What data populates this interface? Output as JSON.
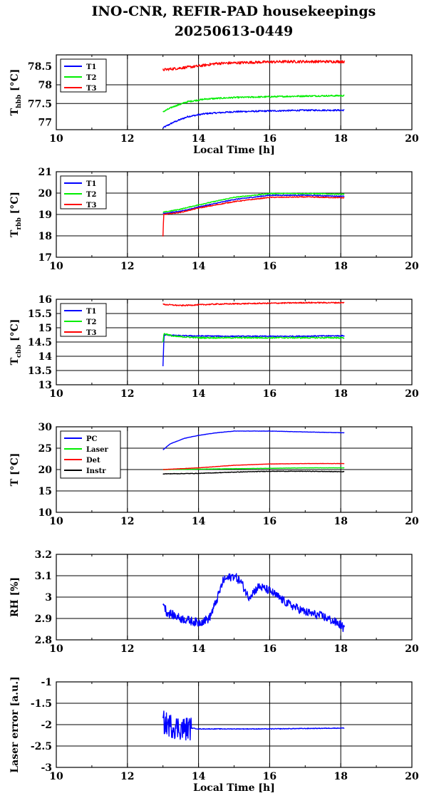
{
  "figure": {
    "title_line1": "INO-CNR, REFIR-PAD housekeepings",
    "title_line2": "20250613-0449"
  },
  "chart_data": [
    {
      "type": "line",
      "ylabel_main": "T",
      "ylabel_sub": "hbb",
      "ylabel_unit": "[°C]",
      "xlabel": "Local Time [h]",
      "xlim": [
        10,
        20
      ],
      "ylim": [
        76.8,
        78.8
      ],
      "xticks": [
        "10",
        "12",
        "14",
        "16",
        "18",
        "20"
      ],
      "yticks": [
        {
          "v": 77,
          "label": "77"
        },
        {
          "v": 77.5,
          "label": "77.5"
        },
        {
          "v": 78,
          "label": "78"
        },
        {
          "v": 78.5,
          "label": "78.5"
        }
      ],
      "grid": true,
      "legend": "top-left",
      "x_range": [
        13.0,
        18.1
      ],
      "series": [
        {
          "name": "T1",
          "color": "#0000ff",
          "trend": [
            [
              13.0,
              76.85
            ],
            [
              13.3,
              77.0
            ],
            [
              13.7,
              77.15
            ],
            [
              14.2,
              77.23
            ],
            [
              15.0,
              77.28
            ],
            [
              16.0,
              77.3
            ],
            [
              17.0,
              77.32
            ],
            [
              18.1,
              77.32
            ]
          ],
          "noise": 0.02
        },
        {
          "name": "T2",
          "color": "#00ee00",
          "trend": [
            [
              13.0,
              77.28
            ],
            [
              13.3,
              77.42
            ],
            [
              13.7,
              77.55
            ],
            [
              14.2,
              77.62
            ],
            [
              15.0,
              77.66
            ],
            [
              16.0,
              77.68
            ],
            [
              17.0,
              77.7
            ],
            [
              18.1,
              77.71
            ]
          ],
          "noise": 0.02
        },
        {
          "name": "T3",
          "color": "#ff0000",
          "trend": [
            [
              13.0,
              78.4
            ],
            [
              13.5,
              78.45
            ],
            [
              14.0,
              78.5
            ],
            [
              14.5,
              78.57
            ],
            [
              15.5,
              78.6
            ],
            [
              16.5,
              78.62
            ],
            [
              17.5,
              78.62
            ],
            [
              18.1,
              78.62
            ]
          ],
          "noise": 0.035
        }
      ]
    },
    {
      "type": "line",
      "ylabel_main": "T",
      "ylabel_sub": "rbb",
      "ylabel_unit": "[°C]",
      "xlabel": "",
      "xlim": [
        10,
        20
      ],
      "ylim": [
        17,
        21
      ],
      "xticks": [
        "10",
        "12",
        "14",
        "16",
        "18",
        "20"
      ],
      "yticks": [
        {
          "v": 17,
          "label": "17"
        },
        {
          "v": 18,
          "label": "18"
        },
        {
          "v": 19,
          "label": "19"
        },
        {
          "v": 20,
          "label": "20"
        },
        {
          "v": 21,
          "label": "21"
        }
      ],
      "grid": true,
      "legend": "top-left",
      "x_range": [
        13.0,
        18.1
      ],
      "series": [
        {
          "name": "T1",
          "color": "#0000ff",
          "trend": [
            [
              13.0,
              19.05
            ],
            [
              13.5,
              19.15
            ],
            [
              14.0,
              19.35
            ],
            [
              15.0,
              19.7
            ],
            [
              16.0,
              19.9
            ],
            [
              17.0,
              19.9
            ],
            [
              18.1,
              19.85
            ]
          ],
          "noise": 0.02
        },
        {
          "name": "T2",
          "color": "#00ee00",
          "trend": [
            [
              13.0,
              19.1
            ],
            [
              13.5,
              19.25
            ],
            [
              14.0,
              19.45
            ],
            [
              15.0,
              19.8
            ],
            [
              16.0,
              19.98
            ],
            [
              17.0,
              19.98
            ],
            [
              18.1,
              19.95
            ]
          ],
          "noise": 0.02
        },
        {
          "name": "T3",
          "color": "#ff0000",
          "trend": [
            [
              13.0,
              17.95
            ],
            [
              13.02,
              19.0
            ],
            [
              13.5,
              19.1
            ],
            [
              14.0,
              19.3
            ],
            [
              15.0,
              19.6
            ],
            [
              16.0,
              19.8
            ],
            [
              17.0,
              19.82
            ],
            [
              18.1,
              19.78
            ]
          ],
          "noise": 0.02
        }
      ]
    },
    {
      "type": "line",
      "ylabel_main": "T",
      "ylabel_sub": "cbb",
      "ylabel_unit": "[°C]",
      "xlabel": "",
      "xlim": [
        10,
        20
      ],
      "ylim": [
        13,
        16
      ],
      "xticks": [
        "10",
        "12",
        "14",
        "16",
        "18",
        "20"
      ],
      "yticks": [
        {
          "v": 13,
          "label": "13"
        },
        {
          "v": 13.5,
          "label": "13.5"
        },
        {
          "v": 14,
          "label": "14"
        },
        {
          "v": 14.5,
          "label": "14.5"
        },
        {
          "v": 15,
          "label": "15"
        },
        {
          "v": 15.5,
          "label": "15.5"
        },
        {
          "v": 16,
          "label": "16"
        }
      ],
      "grid": true,
      "legend": "top-left",
      "x_range": [
        13.0,
        18.1
      ],
      "series": [
        {
          "name": "T1",
          "color": "#0000ff",
          "trend": [
            [
              13.0,
              13.65
            ],
            [
              13.03,
              14.75
            ],
            [
              13.5,
              14.72
            ],
            [
              15.0,
              14.7
            ],
            [
              16.5,
              14.7
            ],
            [
              18.1,
              14.72
            ]
          ],
          "noise": 0.02
        },
        {
          "name": "T2",
          "color": "#00ee00",
          "trend": [
            [
              13.0,
              14.5
            ],
            [
              13.03,
              14.8
            ],
            [
              13.3,
              14.7
            ],
            [
              14.0,
              14.65
            ],
            [
              16.0,
              14.65
            ],
            [
              18.1,
              14.65
            ]
          ],
          "noise": 0.025
        },
        {
          "name": "T3",
          "color": "#ff0000",
          "trend": [
            [
              13.0,
              15.82
            ],
            [
              13.5,
              15.78
            ],
            [
              14.5,
              15.83
            ],
            [
              16.0,
              15.86
            ],
            [
              17.0,
              15.88
            ],
            [
              18.1,
              15.88
            ]
          ],
          "noise": 0.02
        }
      ]
    },
    {
      "type": "line",
      "ylabel_main": "T [°C]",
      "ylabel_sub": "",
      "ylabel_unit": "",
      "xlabel": "",
      "xlim": [
        10,
        20
      ],
      "ylim": [
        10,
        30
      ],
      "xticks": [
        "10",
        "12",
        "14",
        "16",
        "18",
        "20"
      ],
      "yticks": [
        {
          "v": 10,
          "label": "10"
        },
        {
          "v": 15,
          "label": "15"
        },
        {
          "v": 20,
          "label": "20"
        },
        {
          "v": 25,
          "label": "25"
        },
        {
          "v": 30,
          "label": "30"
        }
      ],
      "grid": true,
      "legend": "top-left",
      "x_range": [
        13.0,
        18.1
      ],
      "series": [
        {
          "name": "PC",
          "color": "#0000ff",
          "trend": [
            [
              13.0,
              24.6
            ],
            [
              13.2,
              26.0
            ],
            [
              13.6,
              27.3
            ],
            [
              14.0,
              28.0
            ],
            [
              14.5,
              28.6
            ],
            [
              15.0,
              29.0
            ],
            [
              16.0,
              29.0
            ],
            [
              17.0,
              28.8
            ],
            [
              18.1,
              28.6
            ]
          ],
          "noise": 0.03
        },
        {
          "name": "Laser",
          "color": "#00ee00",
          "trend": [
            [
              13.0,
              20.0
            ],
            [
              14.0,
              20.1
            ],
            [
              15.0,
              20.2
            ],
            [
              16.0,
              20.3
            ],
            [
              17.0,
              20.4
            ],
            [
              18.1,
              20.4
            ]
          ],
          "noise": 0.03
        },
        {
          "name": "Det",
          "color": "#ff0000",
          "trend": [
            [
              13.0,
              20.0
            ],
            [
              14.0,
              20.4
            ],
            [
              15.0,
              21.0
            ],
            [
              16.0,
              21.3
            ],
            [
              17.0,
              21.4
            ],
            [
              18.1,
              21.4
            ]
          ],
          "noise": 0.03
        },
        {
          "name": "Instr",
          "color": "#000000",
          "trend": [
            [
              13.0,
              19.0
            ],
            [
              14.0,
              19.1
            ],
            [
              15.0,
              19.4
            ],
            [
              16.0,
              19.6
            ],
            [
              17.0,
              19.6
            ],
            [
              18.1,
              19.5
            ]
          ],
          "noise": 0.06
        }
      ]
    },
    {
      "type": "line",
      "ylabel_main": "RH [%]",
      "ylabel_sub": "",
      "ylabel_unit": "",
      "xlabel": "",
      "xlim": [
        10,
        20
      ],
      "ylim": [
        2.8,
        3.2
      ],
      "xticks": [
        "10",
        "12",
        "14",
        "16",
        "18",
        "20"
      ],
      "yticks": [
        {
          "v": 2.8,
          "label": "2.8"
        },
        {
          "v": 2.9,
          "label": "2.9"
        },
        {
          "v": 3.0,
          "label": "3"
        },
        {
          "v": 3.1,
          "label": "3.1"
        },
        {
          "v": 3.2,
          "label": "3.2"
        }
      ],
      "grid": true,
      "legend": "",
      "x_range": [
        13.0,
        18.1
      ],
      "series": [
        {
          "name": "",
          "color": "#0000ff",
          "trend": [
            [
              13.0,
              2.98
            ],
            [
              13.1,
              2.93
            ],
            [
              13.5,
              2.9
            ],
            [
              14.0,
              2.88
            ],
            [
              14.3,
              2.9
            ],
            [
              14.5,
              2.98
            ],
            [
              14.7,
              3.08
            ],
            [
              15.0,
              3.1
            ],
            [
              15.2,
              3.07
            ],
            [
              15.4,
              3.0
            ],
            [
              15.7,
              3.05
            ],
            [
              16.0,
              3.03
            ],
            [
              16.5,
              2.97
            ],
            [
              17.0,
              2.93
            ],
            [
              17.5,
              2.91
            ],
            [
              18.0,
              2.87
            ],
            [
              18.1,
              2.85
            ]
          ],
          "noise": 0.02
        }
      ]
    },
    {
      "type": "line",
      "ylabel_main": "Laser error [a.u.]",
      "ylabel_sub": "",
      "ylabel_unit": "",
      "xlabel": "Local Time [h]",
      "xlim": [
        10,
        20
      ],
      "ylim": [
        -3,
        -1
      ],
      "xticks": [
        "10",
        "12",
        "14",
        "16",
        "18",
        "20"
      ],
      "yticks": [
        {
          "v": -3,
          "label": "-3"
        },
        {
          "v": -2.5,
          "label": "-2.5"
        },
        {
          "v": -2,
          "label": "-2"
        },
        {
          "v": -1.5,
          "label": "-1.5"
        },
        {
          "v": -1,
          "label": "-1"
        }
      ],
      "grid": true,
      "legend": "",
      "x_range": [
        13.0,
        18.1
      ],
      "series": [
        {
          "name": "",
          "color": "#0000ff",
          "trend": [
            [
              13.0,
              -1.95
            ],
            [
              13.3,
              -2.05
            ],
            [
              13.6,
              -2.1
            ],
            [
              13.8,
              -2.08
            ],
            [
              14.0,
              -2.1
            ],
            [
              16.0,
              -2.1
            ],
            [
              18.1,
              -2.08
            ]
          ],
          "noise": 0.008,
          "burst": [
            13.0,
            13.8,
            0.28
          ]
        }
      ]
    }
  ]
}
